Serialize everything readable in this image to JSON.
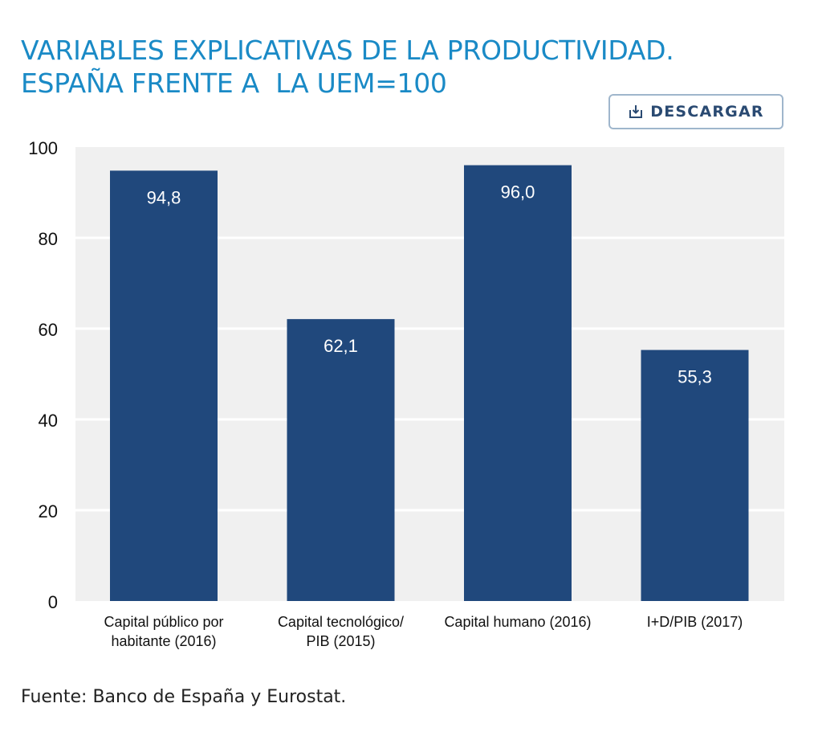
{
  "title_lines": [
    "VARIABLES EXPLICATIVAS DE LA PRODUCTIVIDAD.",
    "ESPAÑA FRENTE A  LA UEM=100"
  ],
  "download": {
    "label": "DESCARGAR",
    "icon": "download-icon"
  },
  "source": "Fuente: Banco de España y Eurostat.",
  "colors": {
    "title": "#1a8ac6",
    "bar": "#20487c",
    "plot_background": "#f0f0f0",
    "grid": "#ffffff"
  },
  "chart_data": {
    "type": "bar",
    "categories": [
      [
        "Capital público por",
        "habitante (2016)"
      ],
      [
        "Capital tecnológico/",
        "PIB (2015)"
      ],
      [
        "Capital humano (2016)"
      ],
      [
        "I+D/PIB (2017)"
      ]
    ],
    "values": [
      94.8,
      62.1,
      96.0,
      55.3
    ],
    "value_labels": [
      "94,8",
      "62,1",
      "96,0",
      "55,3"
    ],
    "ylim": [
      0,
      100
    ],
    "yticks": [
      0,
      20,
      40,
      60,
      80,
      100
    ],
    "grid": true,
    "legend": false
  }
}
